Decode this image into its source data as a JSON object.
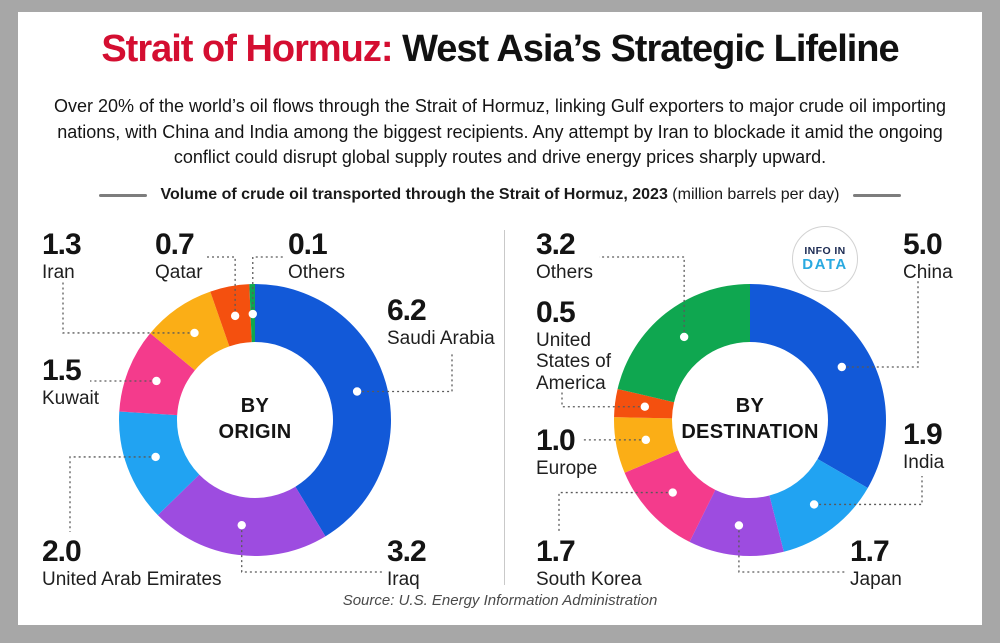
{
  "header": {
    "title_red": "Strait of Hormuz:",
    "title_black": " West Asia’s Strategic Lifeline",
    "intro": "Over 20% of the world’s oil flows through the Strait of Hormuz, linking Gulf exporters to major crude oil importing nations, with China and India among the biggest recipients. Any attempt by Iran to blockade it amid the ongoing conflict could disrupt global supply routes and drive energy prices sharply upward."
  },
  "subheader": {
    "bold": "Volume of crude oil transported through the Strait of Hormuz, 2023",
    "regular": " (million barrels per day)"
  },
  "logo": {
    "line1": "INFO IN",
    "line2": "DATA"
  },
  "source": "Source: U.S. Energy Information Administration",
  "colors": {
    "accent_red": "#d40e31",
    "blue": "#1259d8",
    "light_blue": "#21a3f2",
    "purple": "#9d4ce0",
    "pink": "#f43b8c",
    "yellow": "#fbae16",
    "orange": "#f4500f",
    "green": "#0fa750",
    "frame_gray": "#a7a7a7"
  },
  "chart_data": [
    {
      "type": "donut",
      "title": "BY ORIGIN",
      "center_label": "BY\nORIGIN",
      "unit": "million barrels per day",
      "year": "2023",
      "total": 15.0,
      "segments": [
        {
          "label": "Saudi Arabia",
          "value": 6.2,
          "value_display": "6.2",
          "color": "#1259d8"
        },
        {
          "label": "Iraq",
          "value": 3.2,
          "value_display": "3.2",
          "color": "#9d4ce0"
        },
        {
          "label": "United Arab Emirates",
          "value": 2.0,
          "value_display": "2.0",
          "color": "#21a3f2"
        },
        {
          "label": "Kuwait",
          "value": 1.5,
          "value_display": "1.5",
          "color": "#f43b8c"
        },
        {
          "label": "Iran",
          "value": 1.3,
          "value_display": "1.3",
          "color": "#fbae16"
        },
        {
          "label": "Qatar",
          "value": 0.7,
          "value_display": "0.7",
          "color": "#f4500f"
        },
        {
          "label": "Others",
          "value": 0.1,
          "value_display": "0.1",
          "color": "#0fa750"
        }
      ]
    },
    {
      "type": "donut",
      "title": "BY DESTINATION",
      "center_label": "BY\nDESTINATION",
      "unit": "million barrels per day",
      "year": "2023",
      "total": 15.0,
      "segments": [
        {
          "label": "China",
          "value": 5.0,
          "value_display": "5.0",
          "color": "#1259d8"
        },
        {
          "label": "India",
          "value": 1.9,
          "value_display": "1.9",
          "color": "#21a3f2"
        },
        {
          "label": "Japan",
          "value": 1.7,
          "value_display": "1.7",
          "color": "#9d4ce0"
        },
        {
          "label": "South Korea",
          "value": 1.7,
          "value_display": "1.7",
          "color": "#f43b8c"
        },
        {
          "label": "Europe",
          "value": 1.0,
          "value_display": "1.0",
          "color": "#fbae16"
        },
        {
          "label": "United States of America",
          "value": 0.5,
          "value_display": "0.5",
          "color": "#f4500f"
        },
        {
          "label": "Others",
          "value": 3.2,
          "value_display": "3.2",
          "color": "#0fa750"
        }
      ]
    }
  ]
}
